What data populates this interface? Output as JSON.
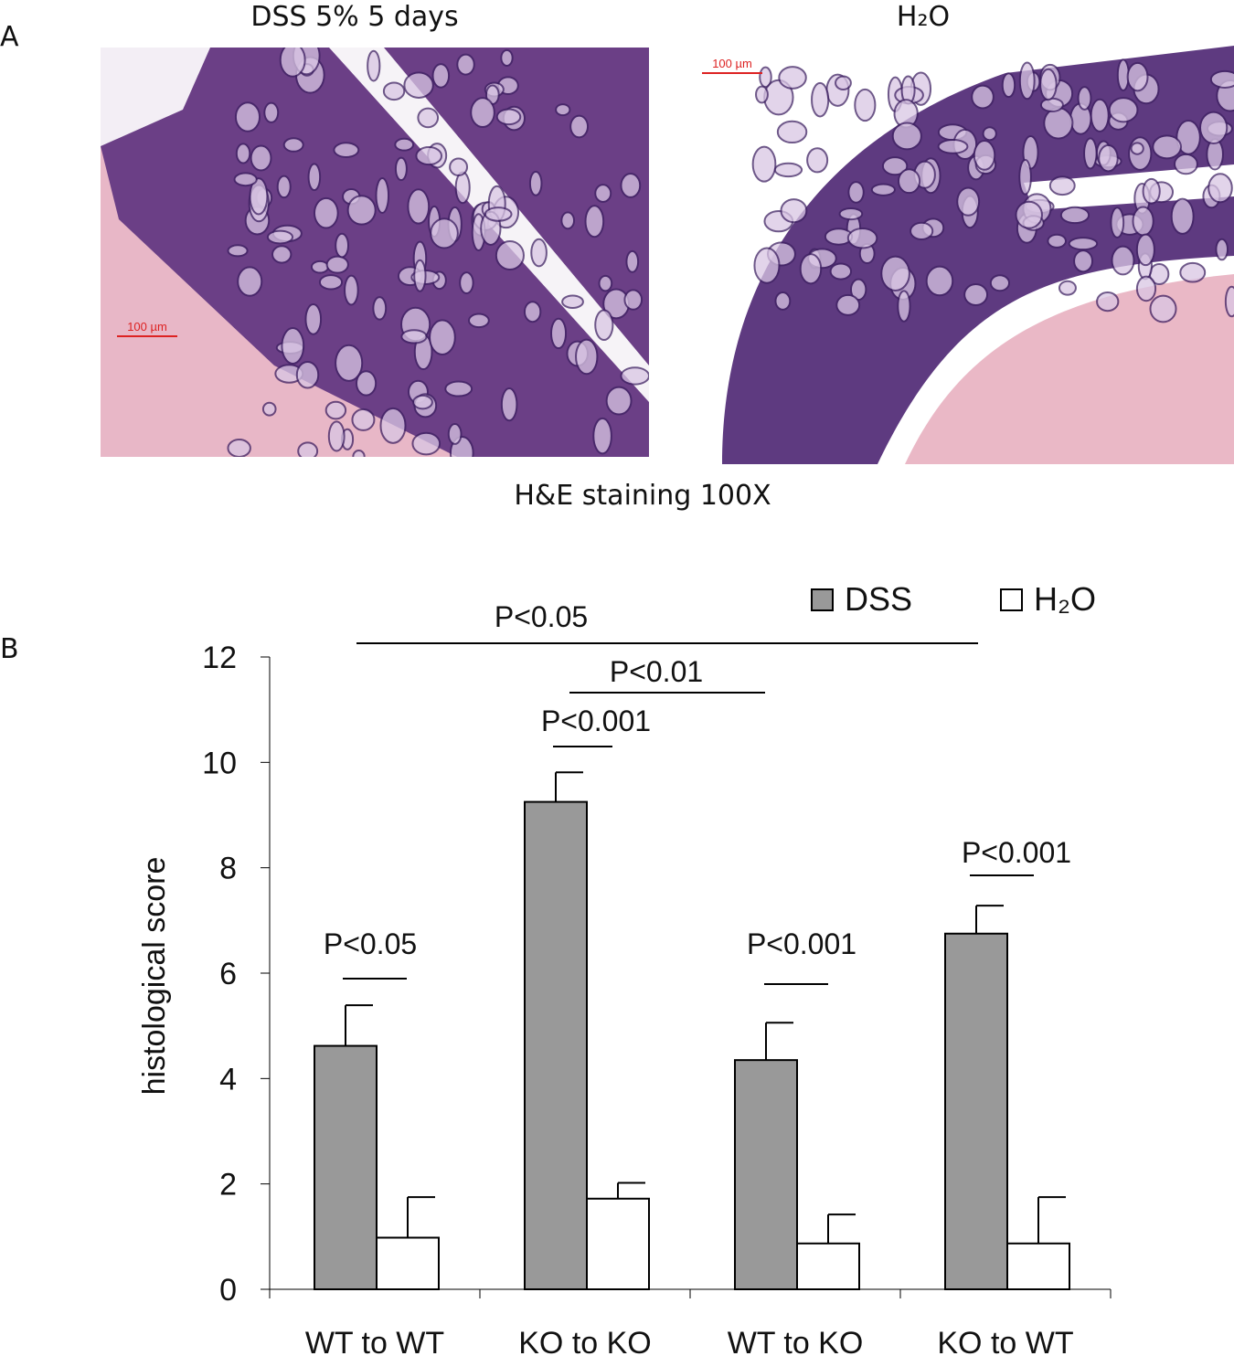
{
  "panel_labels": [
    "A",
    "B"
  ],
  "panel_a": {
    "left_title": "DSS 5% 5 days",
    "right_title": "H₂O",
    "left_scale": "100 µm",
    "right_scale": "100 µm",
    "caption": "H&E staining 100X"
  },
  "chart_data": {
    "type": "bar",
    "y_label": "histological score",
    "categories": [
      "WT to WT",
      "KO to KO",
      "WT to KO",
      "KO to WT"
    ],
    "series": [
      {
        "name": "DSS",
        "color": "#999999",
        "values": [
          4.62,
          9.25,
          4.35,
          6.75
        ],
        "errors": [
          0.77,
          0.56,
          0.71,
          0.53
        ]
      },
      {
        "name": "H₂O",
        "color": "#ffffff",
        "values": [
          0.98,
          1.72,
          0.87,
          0.87
        ],
        "errors": [
          0.77,
          0.3,
          0.55,
          0.88
        ]
      }
    ],
    "ylim": [
      0,
      12
    ],
    "yticks": [
      0,
      2,
      4,
      6,
      8,
      10,
      12
    ],
    "annotations": [
      "P<0.05",
      "P<0.01",
      "P<0.001",
      "P<0.05",
      "P<0.001",
      "P<0.001"
    ]
  }
}
